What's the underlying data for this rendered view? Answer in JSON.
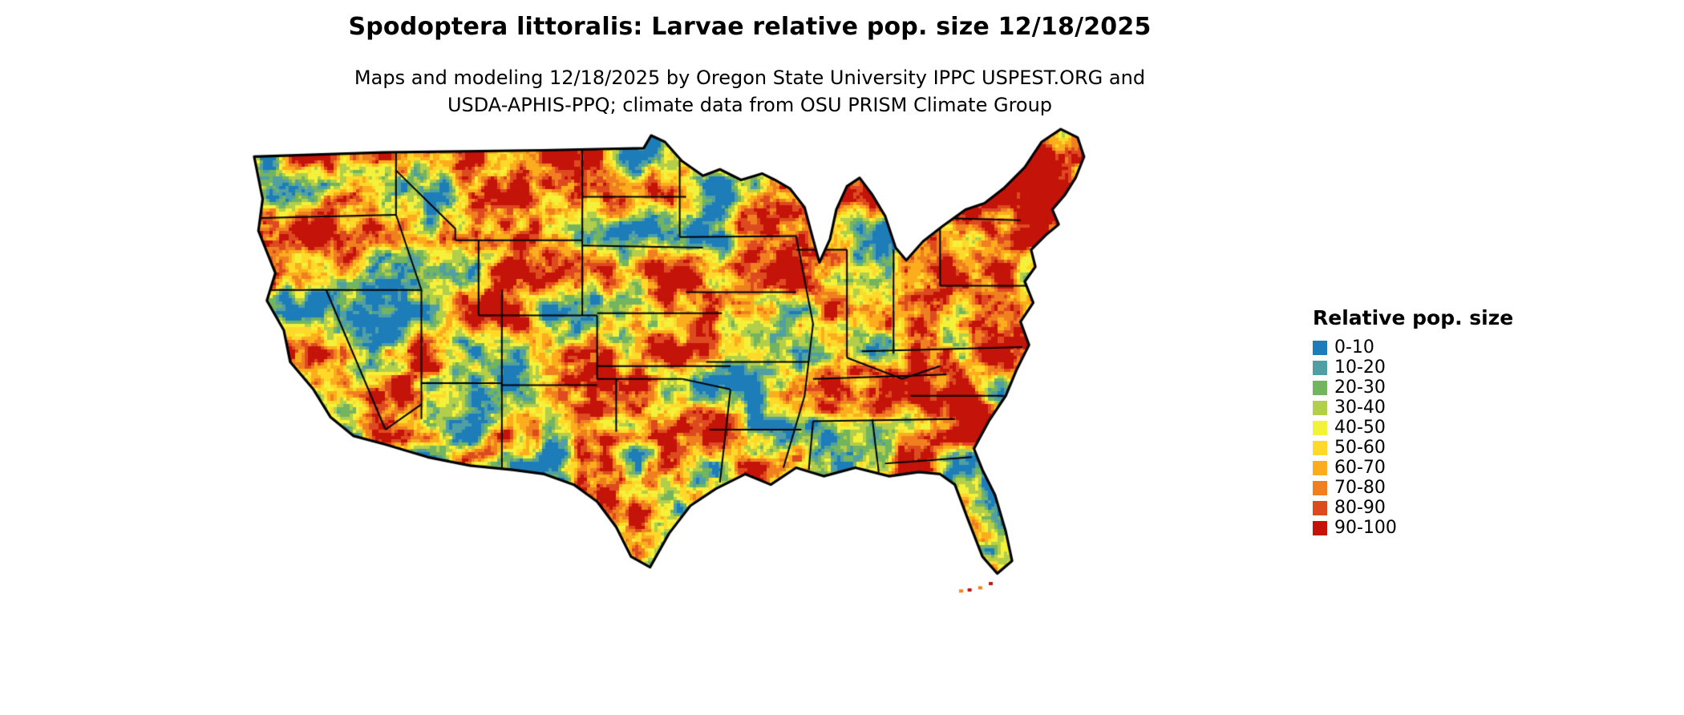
{
  "page": {
    "title": "Spodoptera littoralis: Larvae relative pop. size 12/18/2025",
    "subtitle_line1": "Maps and modeling 12/18/2025 by Oregon State University IPPC USPEST.ORG and",
    "subtitle_line2": "USDA-APHIS-PPQ; climate data from OSU PRISM Climate Group"
  },
  "map": {
    "region": "Contiguous United States",
    "kind": "raster map of larvae relative population size with state boundaries",
    "outline_color": "#000000",
    "background_color": "#ffffff"
  },
  "legend": {
    "title": "Relative pop. size",
    "items": [
      {
        "label": "0-10",
        "color": "#1d7db8"
      },
      {
        "label": "10-20",
        "color": "#4f9fa4"
      },
      {
        "label": "20-30",
        "color": "#73b45f"
      },
      {
        "label": "30-40",
        "color": "#b3ce4a"
      },
      {
        "label": "40-50",
        "color": "#f4f13b"
      },
      {
        "label": "50-60",
        "color": "#ffd92a"
      },
      {
        "label": "60-70",
        "color": "#fbad1d"
      },
      {
        "label": "70-80",
        "color": "#f0801f"
      },
      {
        "label": "80-90",
        "color": "#de4a20"
      },
      {
        "label": "90-100",
        "color": "#c41309"
      }
    ]
  }
}
